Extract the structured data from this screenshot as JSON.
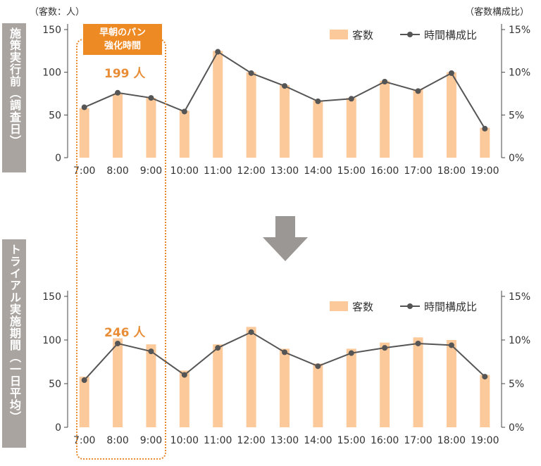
{
  "charts": [
    {
      "side_label": "施策実行前（調査日）",
      "left_unit": "（客数：人）",
      "right_unit": "（客数構成比）",
      "highlight": "199 人"
    },
    {
      "side_label": "トライアル実施期間（一日平均）",
      "left_unit": "",
      "right_unit": "",
      "highlight": "246 人"
    }
  ],
  "highlight_box": {
    "line1": "早朝のパン",
    "line2": "強化時間"
  },
  "colors": {
    "bar": "#fbc99a",
    "line": "#555555",
    "accent": "#ee8a24",
    "side": "#a9a4a0"
  },
  "chart_data": [
    {
      "type": "bar",
      "categories": [
        "7:00",
        "8:00",
        "9:00",
        "10:00",
        "11:00",
        "12:00",
        "13:00",
        "14:00",
        "15:00",
        "16:00",
        "17:00",
        "18:00",
        "19:00"
      ],
      "ylim": [
        0,
        150
      ],
      "y2lim": [
        0,
        15
      ],
      "yticks": [
        "0",
        "50",
        "100",
        "150"
      ],
      "y2ticks": [
        "0%",
        "5%",
        "10%",
        "15%"
      ],
      "legend": [
        "客数",
        "時間構成比"
      ],
      "series": [
        {
          "name": "客数",
          "type": "bar",
          "values": [
            58,
            75,
            70,
            55,
            125,
            100,
            85,
            67,
            70,
            90,
            80,
            100,
            35
          ]
        },
        {
          "name": "時間構成比",
          "type": "line",
          "values": [
            5.9,
            7.6,
            7.0,
            5.4,
            12.4,
            9.9,
            8.4,
            6.6,
            6.9,
            8.9,
            7.8,
            9.9,
            3.4
          ]
        }
      ]
    },
    {
      "type": "bar",
      "categories": [
        "7:00",
        "8:00",
        "9:00",
        "10:00",
        "11:00",
        "12:00",
        "13:00",
        "14:00",
        "15:00",
        "16:00",
        "17:00",
        "18:00",
        "19:00"
      ],
      "ylim": [
        0,
        150
      ],
      "y2lim": [
        0,
        15
      ],
      "yticks": [
        "0",
        "50",
        "100",
        "150"
      ],
      "y2ticks": [
        "0%",
        "5%",
        "10%",
        "15%"
      ],
      "legend": [
        "客数",
        "時間構成比"
      ],
      "series": [
        {
          "name": "客数",
          "type": "bar",
          "values": [
            58,
            102,
            95,
            65,
            95,
            115,
            90,
            73,
            90,
            97,
            103,
            100,
            60
          ]
        },
        {
          "name": "時間構成比",
          "type": "line",
          "values": [
            5.4,
            9.6,
            8.7,
            6.0,
            9.1,
            10.9,
            8.6,
            7.0,
            8.5,
            9.1,
            9.6,
            9.4,
            5.8
          ]
        }
      ]
    }
  ]
}
